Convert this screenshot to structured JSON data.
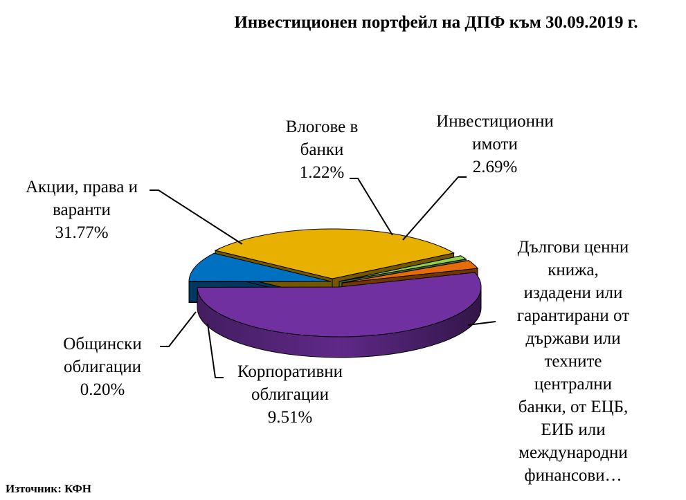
{
  "chart_data": {
    "type": "pie",
    "title": "Инвестиционен портфейл на ДПФ към 30.09.2019 г.",
    "source": "Източник: КФН",
    "slices": [
      {
        "name_lines": [
          "Дългови ценни",
          "книжа,",
          "издадени или",
          "гарантирани от",
          "държави или",
          "техните",
          "централни",
          "банки, от ЕЦБ,",
          "ЕИБ или",
          "международни",
          "финансови…"
        ],
        "value": 54.61,
        "value_label": "",
        "color": "#7030a0"
      },
      {
        "name_lines": [
          "Общински",
          "облигации"
        ],
        "value": 0.2,
        "value_label": "0.20%",
        "color": "#0d3a5c"
      },
      {
        "name_lines": [
          "Корпоративни",
          "облигации"
        ],
        "value": 9.51,
        "value_label": "9.51%",
        "color": "#0070c0"
      },
      {
        "name_lines": [
          "Акции, права и",
          "варанти"
        ],
        "value": 31.77,
        "value_label": "31.77%",
        "color": "#e8b000"
      },
      {
        "name_lines": [
          "Влогове в",
          "банки"
        ],
        "value": 1.22,
        "value_label": "1.22%",
        "color": "#92d050"
      },
      {
        "name_lines": [
          "Инвестиционни",
          "имоти"
        ],
        "value": 2.69,
        "value_label": "2.69%",
        "color": "#e46c0a"
      }
    ]
  }
}
